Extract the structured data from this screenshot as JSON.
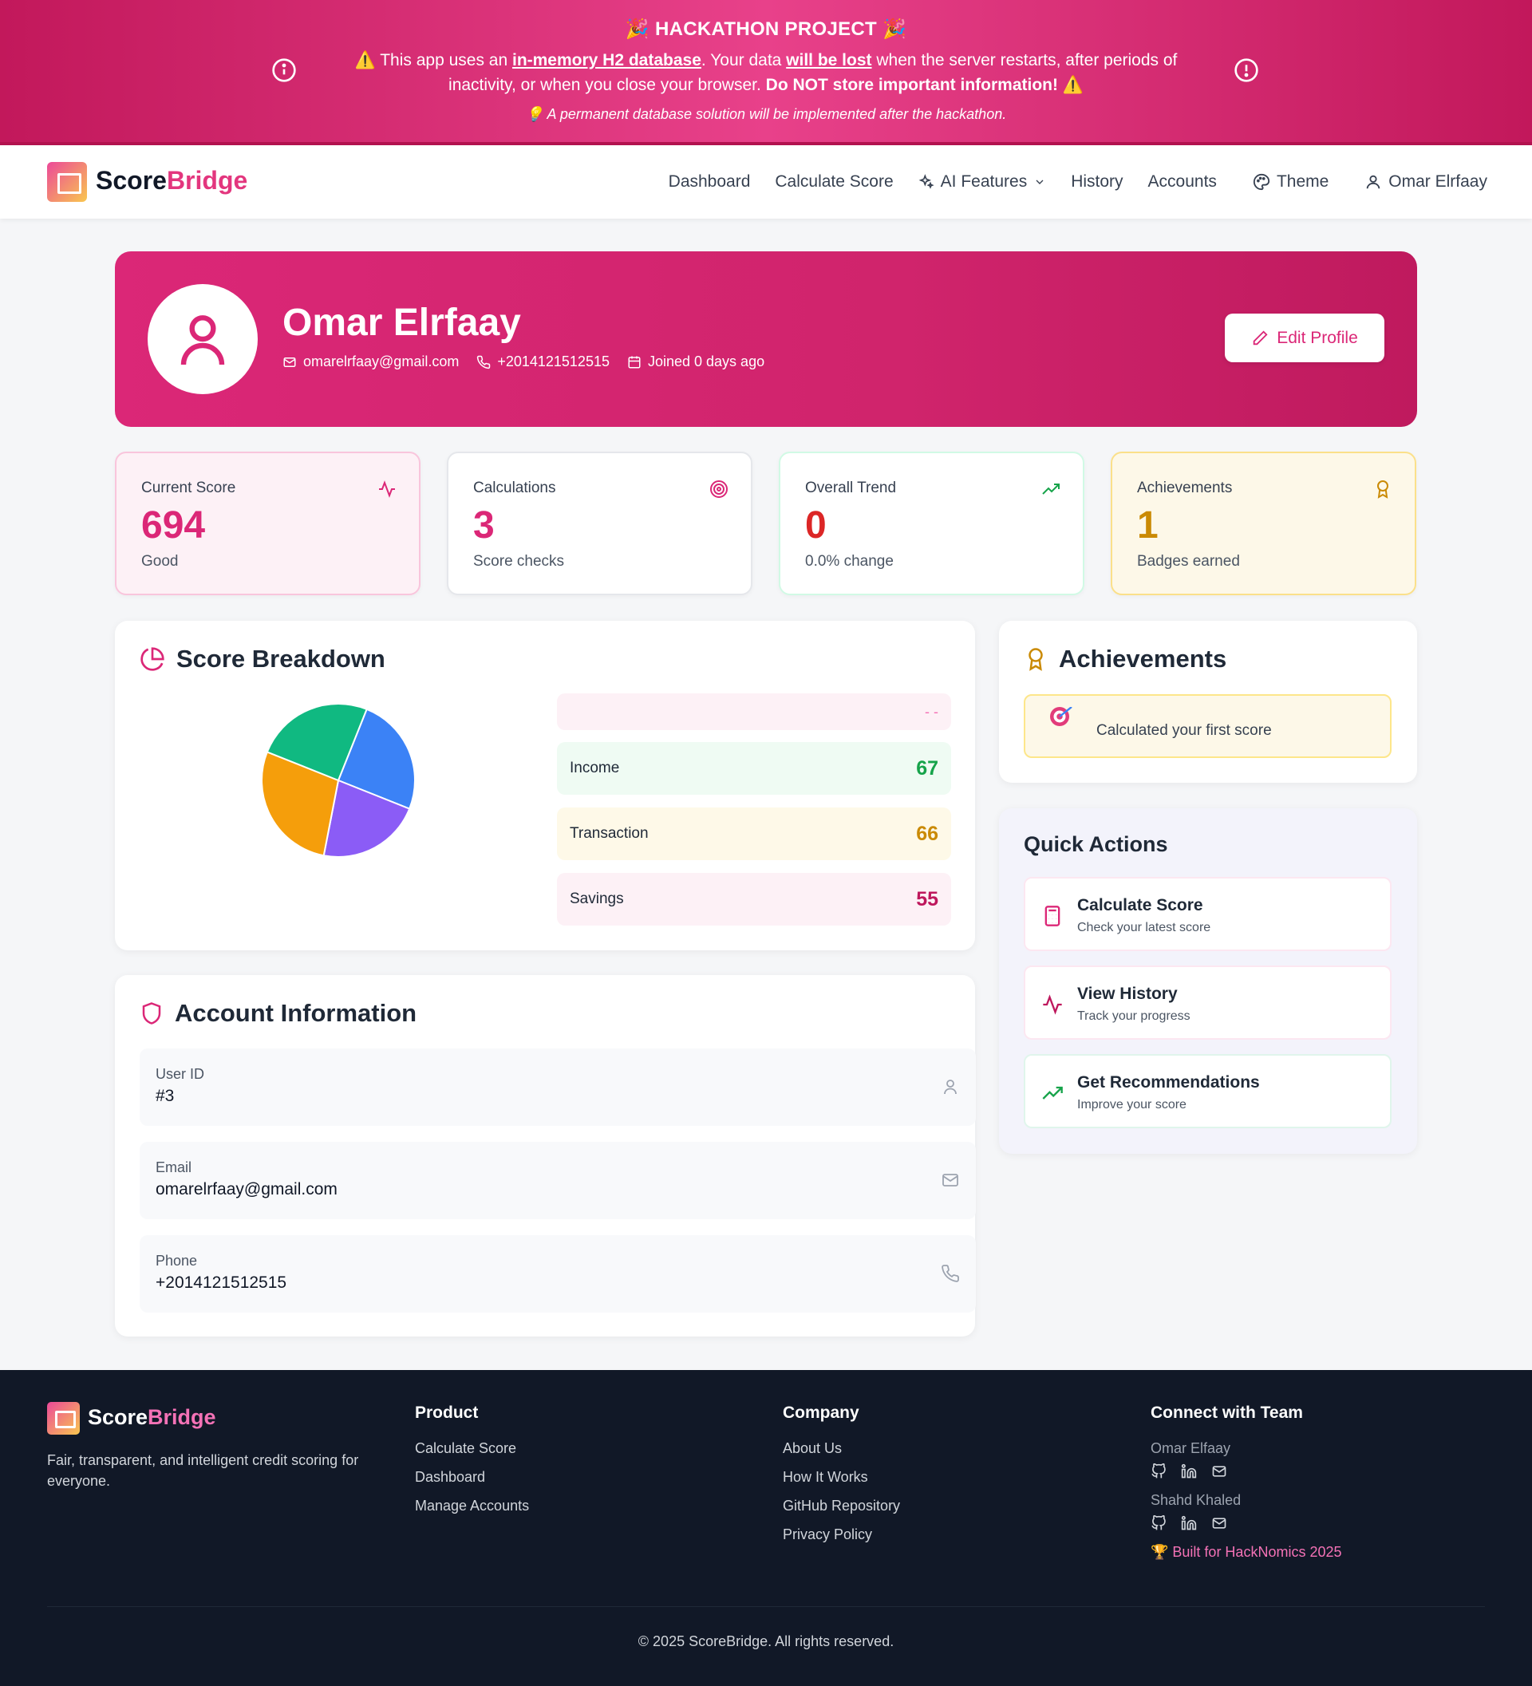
{
  "banner": {
    "title": "🎉 HACKATHON PROJECT 🎉",
    "warn_prefix": "⚠️ This app uses an ",
    "warn_db": "in-memory H2 database",
    "warn_mid": ". Your data ",
    "warn_lost": "will be lost",
    "warn_after": " when the server restarts, after periods of inactivity, or when you close your browser. ",
    "warn_bold": "Do NOT store important information!",
    "warn_end": " ⚠️",
    "note": "💡 A permanent database solution will be implemented after the hackathon."
  },
  "nav": {
    "brand_a": "Score",
    "brand_b": "Bridge",
    "links": [
      "Dashboard",
      "Calculate Score",
      "AI Features",
      "History",
      "Accounts",
      "Theme",
      "Omar Elrfaay"
    ]
  },
  "profile": {
    "name": "Omar Elrfaay",
    "email": "omarelrfaay@gmail.com",
    "phone": "+2014121512515",
    "joined": "Joined 0 days ago",
    "edit_label": "Edit Profile"
  },
  "stats": [
    {
      "label": "Current Score",
      "value": "694",
      "sub": "Good",
      "color": "#db2777"
    },
    {
      "label": "Calculations",
      "value": "3",
      "sub": "Score checks",
      "color": "#db2777"
    },
    {
      "label": "Overall Trend",
      "value": "0",
      "sub": "0.0% change",
      "color": "#dc2626"
    },
    {
      "label": "Achievements",
      "value": "1",
      "sub": "Badges earned",
      "color": "#ca8a04"
    }
  ],
  "breakdown": {
    "title": "Score Breakdown",
    "top_row_value": "- -",
    "rows": [
      {
        "label": "Income",
        "value": "67",
        "color": "#16a34a",
        "bg": "#effbf3"
      },
      {
        "label": "Transaction",
        "value": "66",
        "color": "#ca8a04",
        "bg": "#fef9e8"
      },
      {
        "label": "Savings",
        "value": "55",
        "color": "#be185d",
        "bg": "#fdf1f6"
      }
    ],
    "chart_data": {
      "type": "pie",
      "slices": [
        {
          "color": "#3b82f6",
          "value": 25
        },
        {
          "color": "#8b5cf6",
          "value": 22
        },
        {
          "color": "#f59e0b",
          "value": 28
        },
        {
          "color": "#10b981",
          "value": 25
        }
      ]
    }
  },
  "achievements": {
    "title": "Achievements",
    "item_text": "Calculated your first score"
  },
  "quick_actions": {
    "title": "Quick Actions",
    "items": [
      {
        "title": "Calculate Score",
        "sub": "Check your latest score"
      },
      {
        "title": "View History",
        "sub": "Track your progress"
      },
      {
        "title": "Get Recommendations",
        "sub": "Improve your score"
      }
    ]
  },
  "account": {
    "title": "Account Information",
    "rows": [
      {
        "label": "User ID",
        "value": "#3"
      },
      {
        "label": "Email",
        "value": "omarelrfaay@gmail.com"
      },
      {
        "label": "Phone",
        "value": "+2014121512515"
      }
    ]
  },
  "footer": {
    "brand_a": "Score",
    "brand_b": "Bridge",
    "desc": "Fair, transparent, and intelligent credit scoring for everyone.",
    "product": {
      "head": "Product",
      "links": [
        "Calculate Score",
        "Dashboard",
        "Manage Accounts"
      ]
    },
    "company": {
      "head": "Company",
      "links": [
        "About Us",
        "How It Works",
        "GitHub Repository",
        "Privacy Policy"
      ]
    },
    "team": {
      "head": "Connect with Team",
      "members": [
        "Omar Elfaay",
        "Shahd Khaled"
      ],
      "built": "🏆 Built for HackNomics 2025"
    },
    "copyright": "© 2025 ScoreBridge. All rights reserved."
  }
}
